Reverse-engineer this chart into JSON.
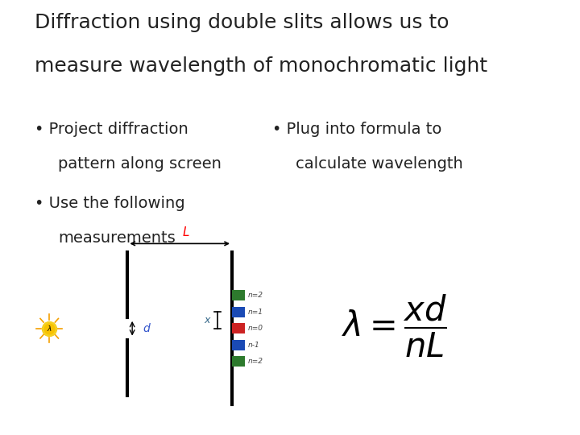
{
  "title_line1": "Diffraction using double slits allows us to",
  "title_line2": "measure wavelength of monochromatic light",
  "title_fontsize": 18,
  "title_color": "#222222",
  "bullet1_line1": "Project diffraction",
  "bullet1_line2": "pattern along screen",
  "bullet2_line1": "Use the following",
  "bullet2_line2": "measurements",
  "bullet3_line1": "Plug into formula to",
  "bullet3_line2": "calculate wavelength",
  "bullet_fontsize": 14,
  "bullet_color": "#222222",
  "background_color": "#ffffff",
  "fringe_colors": [
    "#2d7a2d",
    "#1a4ab5",
    "#cc2222",
    "#1a4ab5",
    "#2d7a2d"
  ],
  "fringe_labels": [
    "n=2",
    "n=1",
    "n=0",
    "n-1",
    "n=2"
  ]
}
